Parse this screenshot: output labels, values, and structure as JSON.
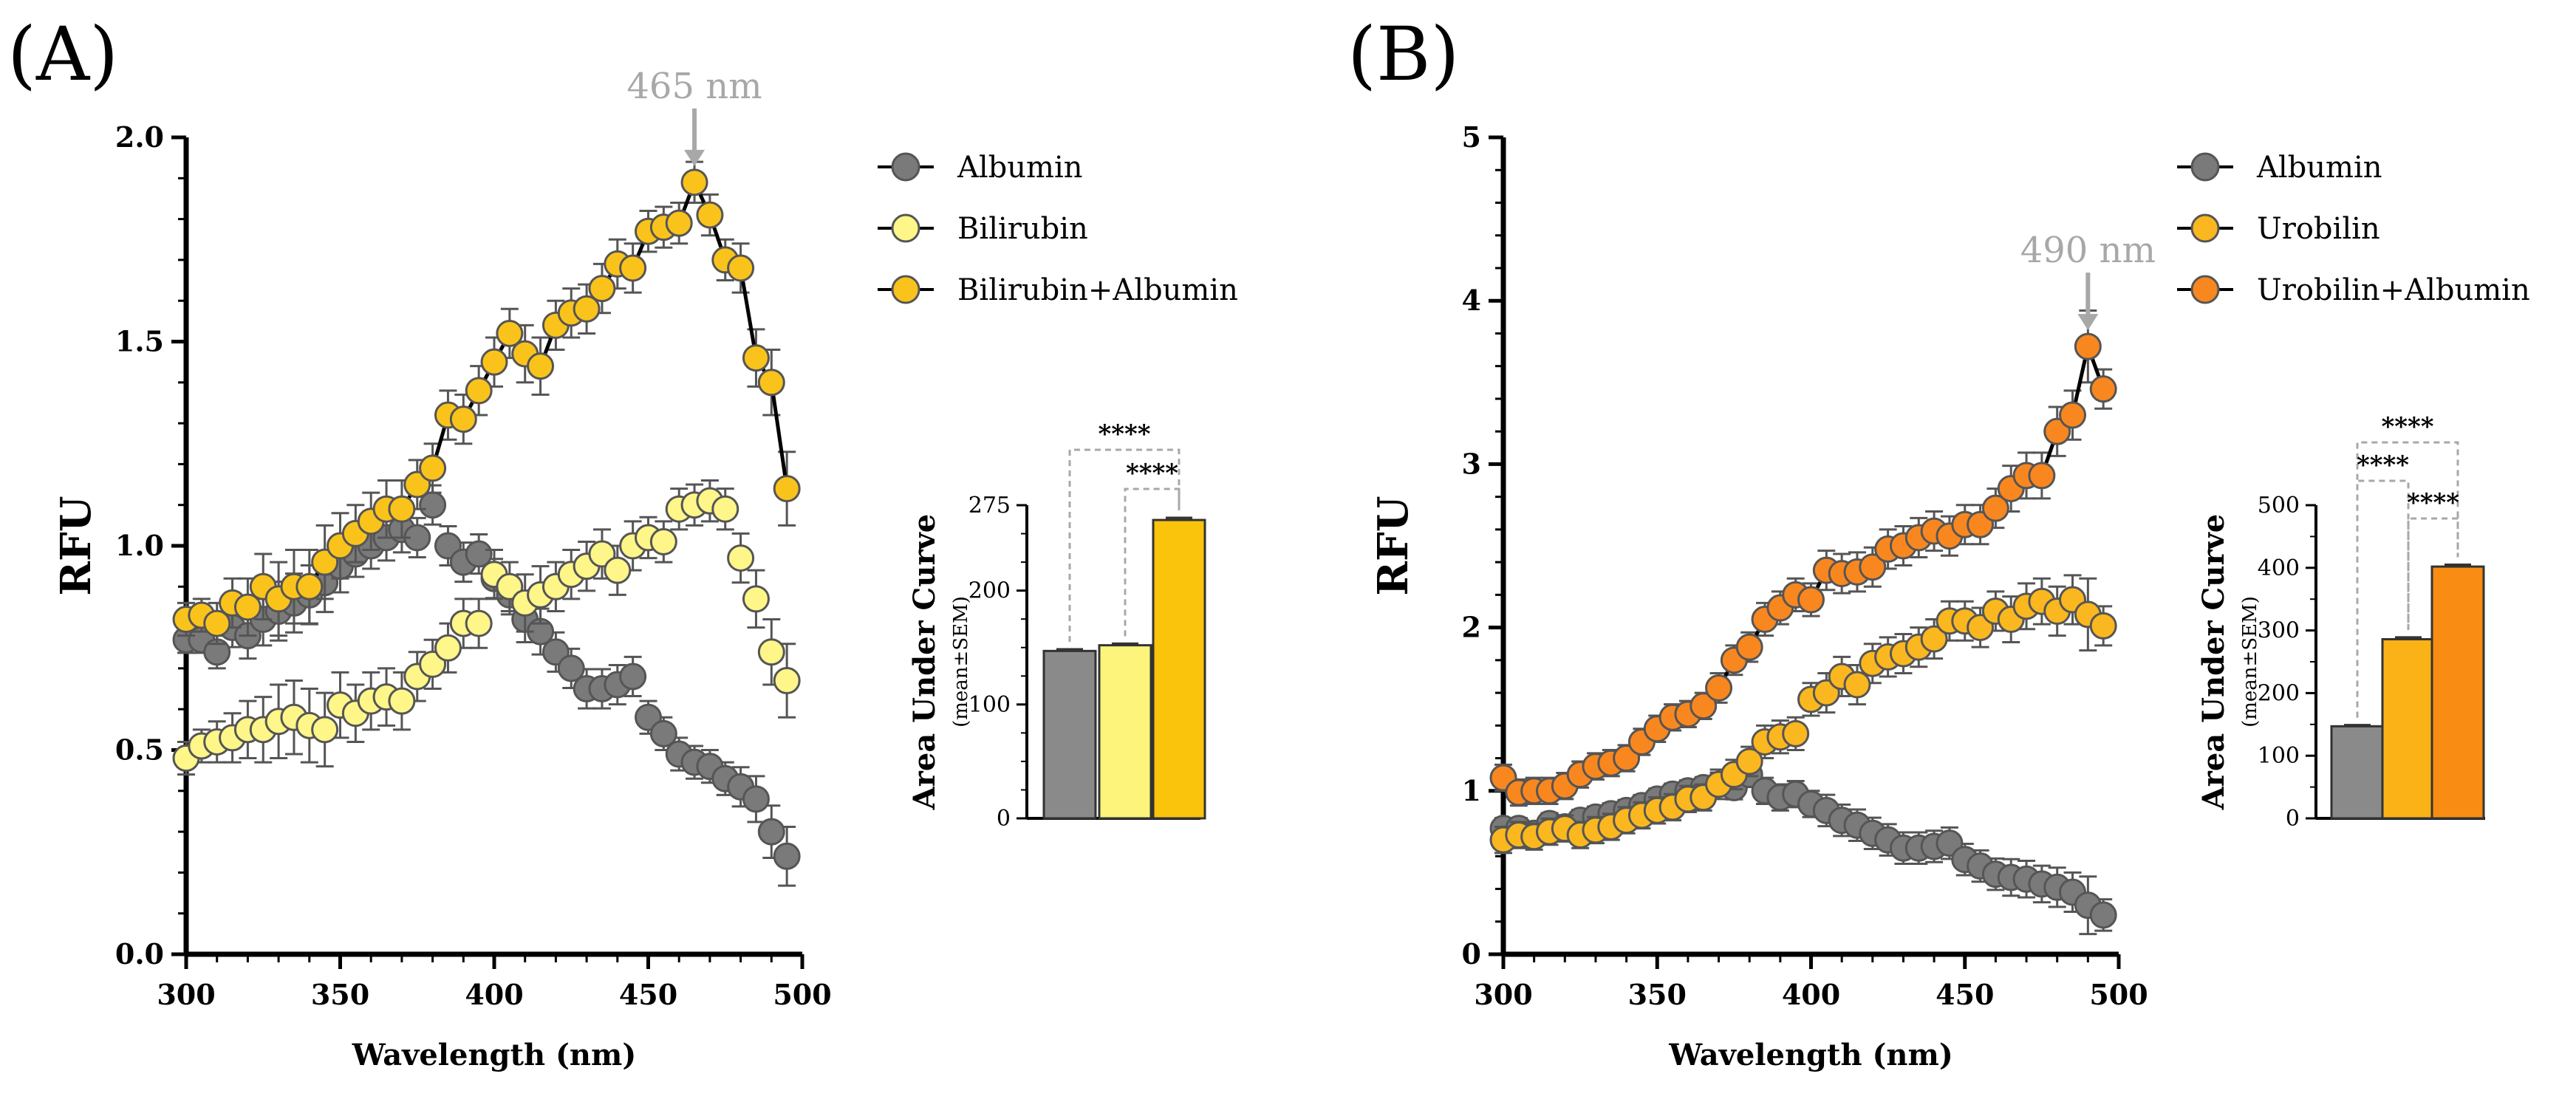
{
  "panels": [
    {
      "label": "(A)",
      "peak_annotation": {
        "text": "465 nm",
        "x": 465,
        "y": 1.89
      },
      "line_chart": {
        "type": "scatter",
        "xlabel": "Wavelength (nm)",
        "ylabel": "RFU",
        "xlim": [
          300,
          500
        ],
        "ylim": [
          0,
          2.0
        ],
        "xticks": [
          300,
          350,
          400,
          450,
          500
        ],
        "yticks": [
          0.0,
          0.5,
          1.0,
          1.5,
          2.0
        ],
        "ytick_labels": [
          "0.0",
          "0.5",
          "1.0",
          "1.5",
          "2.0"
        ],
        "legend_position": "top-right outside",
        "series": [
          {
            "name": "Albumin",
            "color": "#7a7a7a",
            "connected": false,
            "x": [
              300,
              305,
              310,
              315,
              320,
              325,
              330,
              335,
              340,
              345,
              350,
              355,
              360,
              365,
              370,
              375,
              380,
              385,
              390,
              395,
              400,
              405,
              410,
              415,
              420,
              425,
              430,
              435,
              440,
              445,
              450,
              455,
              460,
              465,
              470,
              475,
              480,
              485,
              490,
              495
            ],
            "y": [
              0.77,
              0.77,
              0.74,
              0.8,
              0.78,
              0.82,
              0.84,
              0.86,
              0.88,
              0.91,
              0.95,
              0.98,
              1.0,
              1.02,
              1.04,
              1.02,
              1.1,
              1.0,
              0.96,
              0.98,
              0.92,
              0.88,
              0.82,
              0.79,
              0.74,
              0.7,
              0.65,
              0.65,
              0.66,
              0.68,
              0.58,
              0.54,
              0.49,
              0.47,
              0.46,
              0.43,
              0.41,
              0.38,
              0.3,
              0.24
            ]
          },
          {
            "name": "Bilirubin",
            "color": "#fef689",
            "connected": false,
            "x": [
              300,
              305,
              310,
              315,
              320,
              325,
              330,
              335,
              340,
              345,
              350,
              355,
              360,
              365,
              370,
              375,
              380,
              385,
              390,
              395,
              400,
              405,
              410,
              415,
              420,
              425,
              430,
              435,
              440,
              445,
              450,
              455,
              460,
              465,
              470,
              475,
              480,
              485,
              490,
              495
            ],
            "y": [
              0.48,
              0.51,
              0.52,
              0.53,
              0.55,
              0.55,
              0.57,
              0.58,
              0.56,
              0.55,
              0.61,
              0.59,
              0.62,
              0.63,
              0.62,
              0.68,
              0.71,
              0.75,
              0.81,
              0.81,
              0.93,
              0.9,
              0.86,
              0.88,
              0.9,
              0.93,
              0.95,
              0.98,
              0.94,
              1.0,
              1.02,
              1.01,
              1.09,
              1.1,
              1.11,
              1.09,
              0.97,
              0.87,
              0.74,
              0.67
            ]
          },
          {
            "name": "Bilirubin+Albumin",
            "color": "#fac31c",
            "connected": true,
            "x": [
              300,
              305,
              310,
              315,
              320,
              325,
              330,
              335,
              340,
              345,
              350,
              355,
              360,
              365,
              370,
              375,
              380,
              385,
              390,
              395,
              400,
              405,
              410,
              415,
              420,
              425,
              430,
              435,
              440,
              445,
              450,
              455,
              460,
              465,
              470,
              475,
              480,
              485,
              490,
              495
            ],
            "y": [
              0.82,
              0.83,
              0.81,
              0.86,
              0.85,
              0.9,
              0.87,
              0.9,
              0.9,
              0.96,
              1.0,
              1.03,
              1.06,
              1.09,
              1.09,
              1.15,
              1.19,
              1.32,
              1.31,
              1.38,
              1.45,
              1.52,
              1.47,
              1.44,
              1.54,
              1.57,
              1.58,
              1.63,
              1.69,
              1.68,
              1.77,
              1.78,
              1.79,
              1.89,
              1.81,
              1.7,
              1.68,
              1.46,
              1.4,
              1.14
            ]
          }
        ],
        "error": [
          0.04,
          0.04,
          0.05,
          0.06,
          0.07,
          0.08,
          0.09,
          0.09,
          0.09,
          0.09,
          0.08,
          0.07,
          0.07,
          0.07,
          0.07,
          0.06,
          0.06,
          0.06,
          0.06,
          0.06,
          0.06,
          0.06,
          0.07,
          0.07,
          0.06,
          0.06,
          0.06,
          0.06,
          0.06,
          0.06,
          0.05,
          0.05,
          0.05,
          0.05,
          0.05,
          0.05,
          0.06,
          0.07,
          0.08,
          0.09
        ]
      },
      "bar_chart": {
        "type": "bar",
        "ylabel": "Area Under Curve",
        "ylabel_sub": "(mean±SEM)",
        "ylim": [
          0,
          275
        ],
        "yticks": [
          0,
          100,
          200,
          275
        ],
        "ytick_labels": [
          "0",
          "100",
          "200",
          "275"
        ],
        "categories": [
          "Albumin",
          "Bilirubin",
          "Bilirubin+Albumin"
        ],
        "values": [
          147,
          152,
          262
        ],
        "errors": [
          1.5,
          1.5,
          2
        ],
        "colors": [
          "#8a8a8a",
          "#fdf47c",
          "#fac30c"
        ],
        "significance": [
          {
            "from": 0,
            "to": 2,
            "label": "****"
          },
          {
            "from": 1,
            "to": 2,
            "label": "****"
          }
        ]
      }
    },
    {
      "label": "(B)",
      "peak_annotation": {
        "text": "490 nm",
        "x": 490,
        "y": 3.72
      },
      "line_chart": {
        "type": "scatter",
        "xlabel": "Wavelength (nm)",
        "ylabel": "RFU",
        "xlim": [
          300,
          500
        ],
        "ylim": [
          0,
          5
        ],
        "xticks": [
          300,
          350,
          400,
          450,
          500
        ],
        "yticks": [
          0,
          1,
          2,
          3,
          4,
          5
        ],
        "ytick_labels": [
          "0",
          "1",
          "2",
          "3",
          "4",
          "5"
        ],
        "legend_position": "top-right outside",
        "series": [
          {
            "name": "Albumin",
            "color": "#7a7a7a",
            "connected": false,
            "x": [
              300,
              305,
              310,
              315,
              320,
              325,
              330,
              335,
              340,
              345,
              350,
              355,
              360,
              365,
              370,
              375,
              380,
              385,
              390,
              395,
              400,
              405,
              410,
              415,
              420,
              425,
              430,
              435,
              440,
              445,
              450,
              455,
              460,
              465,
              470,
              475,
              480,
              485,
              490,
              495
            ],
            "y": [
              0.77,
              0.77,
              0.74,
              0.8,
              0.78,
              0.82,
              0.84,
              0.86,
              0.88,
              0.91,
              0.95,
              0.98,
              1.0,
              1.02,
              1.04,
              1.02,
              1.1,
              1.0,
              0.96,
              0.98,
              0.92,
              0.88,
              0.82,
              0.79,
              0.74,
              0.7,
              0.65,
              0.65,
              0.66,
              0.68,
              0.58,
              0.54,
              0.49,
              0.47,
              0.46,
              0.43,
              0.41,
              0.38,
              0.3,
              0.24
            ]
          },
          {
            "name": "Urobilin",
            "color": "#fbb71f",
            "connected": false,
            "x": [
              300,
              305,
              310,
              315,
              320,
              325,
              330,
              335,
              340,
              345,
              350,
              355,
              360,
              365,
              370,
              375,
              380,
              385,
              390,
              395,
              400,
              405,
              410,
              415,
              420,
              425,
              430,
              435,
              440,
              445,
              450,
              455,
              460,
              465,
              470,
              475,
              480,
              485,
              490,
              495
            ],
            "y": [
              0.7,
              0.73,
              0.72,
              0.75,
              0.77,
              0.73,
              0.76,
              0.78,
              0.82,
              0.85,
              0.88,
              0.9,
              0.95,
              0.96,
              1.04,
              1.1,
              1.18,
              1.3,
              1.33,
              1.35,
              1.56,
              1.6,
              1.7,
              1.65,
              1.78,
              1.82,
              1.84,
              1.88,
              1.93,
              2.04,
              2.04,
              2.0,
              2.1,
              2.05,
              2.13,
              2.16,
              2.1,
              2.17,
              2.08,
              2.01
            ]
          },
          {
            "name": "Urobilin+Albumin",
            "color": "#f9871f",
            "connected": true,
            "x": [
              300,
              305,
              310,
              315,
              320,
              325,
              330,
              335,
              340,
              345,
              350,
              355,
              360,
              365,
              370,
              375,
              380,
              385,
              390,
              395,
              400,
              405,
              410,
              415,
              420,
              425,
              430,
              435,
              440,
              445,
              450,
              455,
              460,
              465,
              470,
              475,
              480,
              485,
              490,
              495
            ],
            "y": [
              1.08,
              0.99,
              1.0,
              1.0,
              1.03,
              1.1,
              1.15,
              1.17,
              1.2,
              1.3,
              1.38,
              1.45,
              1.47,
              1.52,
              1.63,
              1.8,
              1.88,
              2.05,
              2.12,
              2.2,
              2.17,
              2.35,
              2.33,
              2.34,
              2.37,
              2.48,
              2.5,
              2.55,
              2.59,
              2.56,
              2.63,
              2.63,
              2.73,
              2.85,
              2.93,
              2.93,
              3.2,
              3.3,
              3.72,
              3.46
            ]
          }
        ],
        "error": [
          0.08,
          0.08,
          0.08,
          0.08,
          0.08,
          0.08,
          0.08,
          0.08,
          0.08,
          0.08,
          0.08,
          0.08,
          0.08,
          0.08,
          0.09,
          0.09,
          0.09,
          0.1,
          0.1,
          0.1,
          0.1,
          0.12,
          0.12,
          0.12,
          0.12,
          0.12,
          0.12,
          0.12,
          0.12,
          0.12,
          0.12,
          0.12,
          0.12,
          0.14,
          0.14,
          0.14,
          0.15,
          0.15,
          0.22,
          0.12
        ]
      },
      "bar_chart": {
        "type": "bar",
        "ylabel": "Area Under Curve",
        "ylabel_sub": "(mean±SEM)",
        "ylim": [
          0,
          500
        ],
        "yticks": [
          0,
          100,
          200,
          300,
          400,
          500
        ],
        "ytick_labels": [
          "0",
          "100",
          "200",
          "300",
          "400",
          "500"
        ],
        "categories": [
          "Albumin",
          "Urobilin",
          "Urobilin+Albumin"
        ],
        "values": [
          147,
          286,
          402
        ],
        "errors": [
          2,
          3,
          3
        ],
        "colors": [
          "#8a8a8a",
          "#fbb216",
          "#f98c12"
        ],
        "significance": [
          {
            "from": 0,
            "to": 2,
            "label": "****"
          },
          {
            "from": 0,
            "to": 1,
            "label": "****"
          },
          {
            "from": 1,
            "to": 2,
            "label": "****"
          }
        ]
      }
    }
  ]
}
